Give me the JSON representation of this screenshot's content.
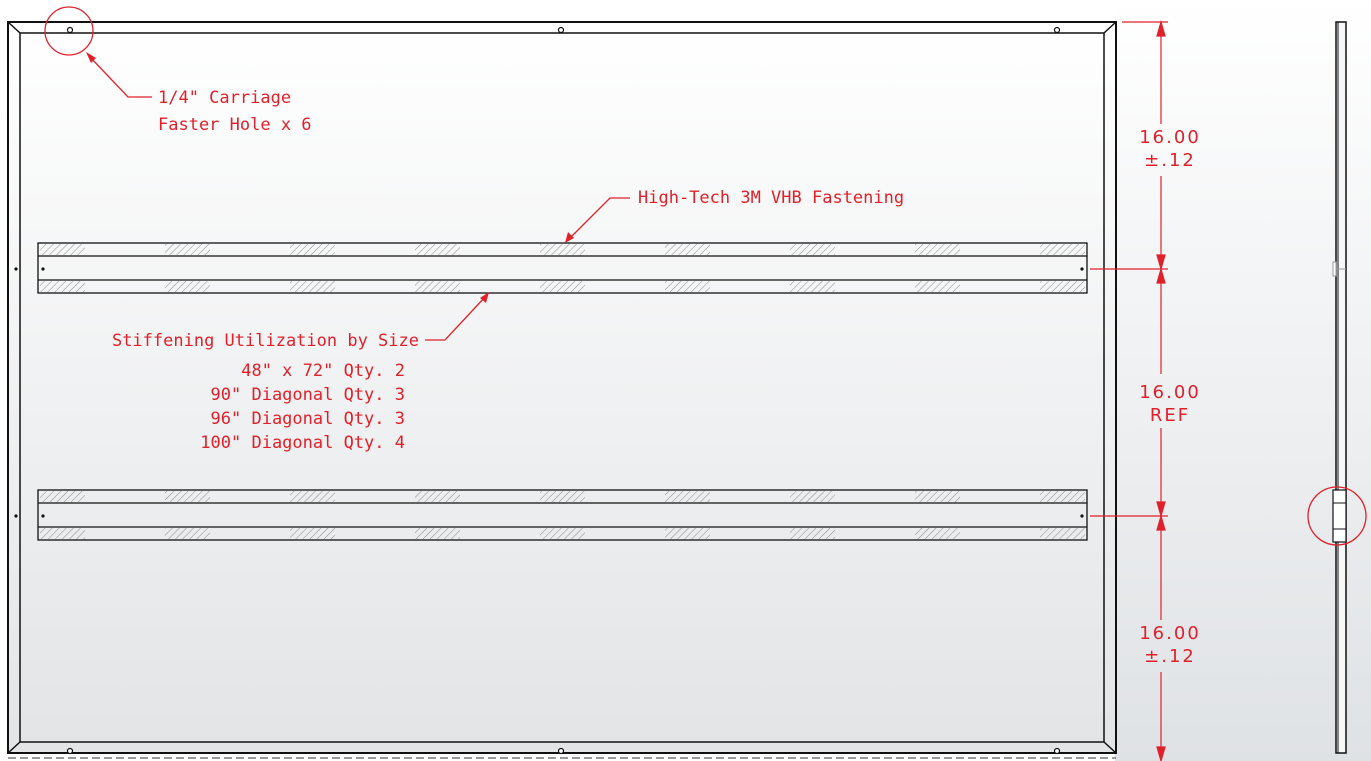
{
  "callouts": {
    "carriage_hole": [
      "1/4\" Carriage",
      "Faster Hole x 6"
    ],
    "vhb": "High-Tech 3M VHB Fastening",
    "stiffening": {
      "title": "Stiffening Utilization by Size",
      "lines": [
        "48\" x 72\" Qty. 2",
        "90\" Diagonal Qty. 3",
        "96\" Diagonal Qty. 3",
        "100\" Diagonal Qty. 4"
      ]
    }
  },
  "dimensions": {
    "top": [
      "16.00",
      "±.12"
    ],
    "middle": [
      "16.00",
      "REF"
    ],
    "bottom": [
      "16.00",
      "±.12"
    ]
  },
  "colors": {
    "annotation": "#e0212b",
    "outline": "#111111",
    "panel_gradient_top": "#ffffff",
    "panel_gradient_bottom": "#e2e4e6",
    "hatch": "#8a8a8a"
  }
}
